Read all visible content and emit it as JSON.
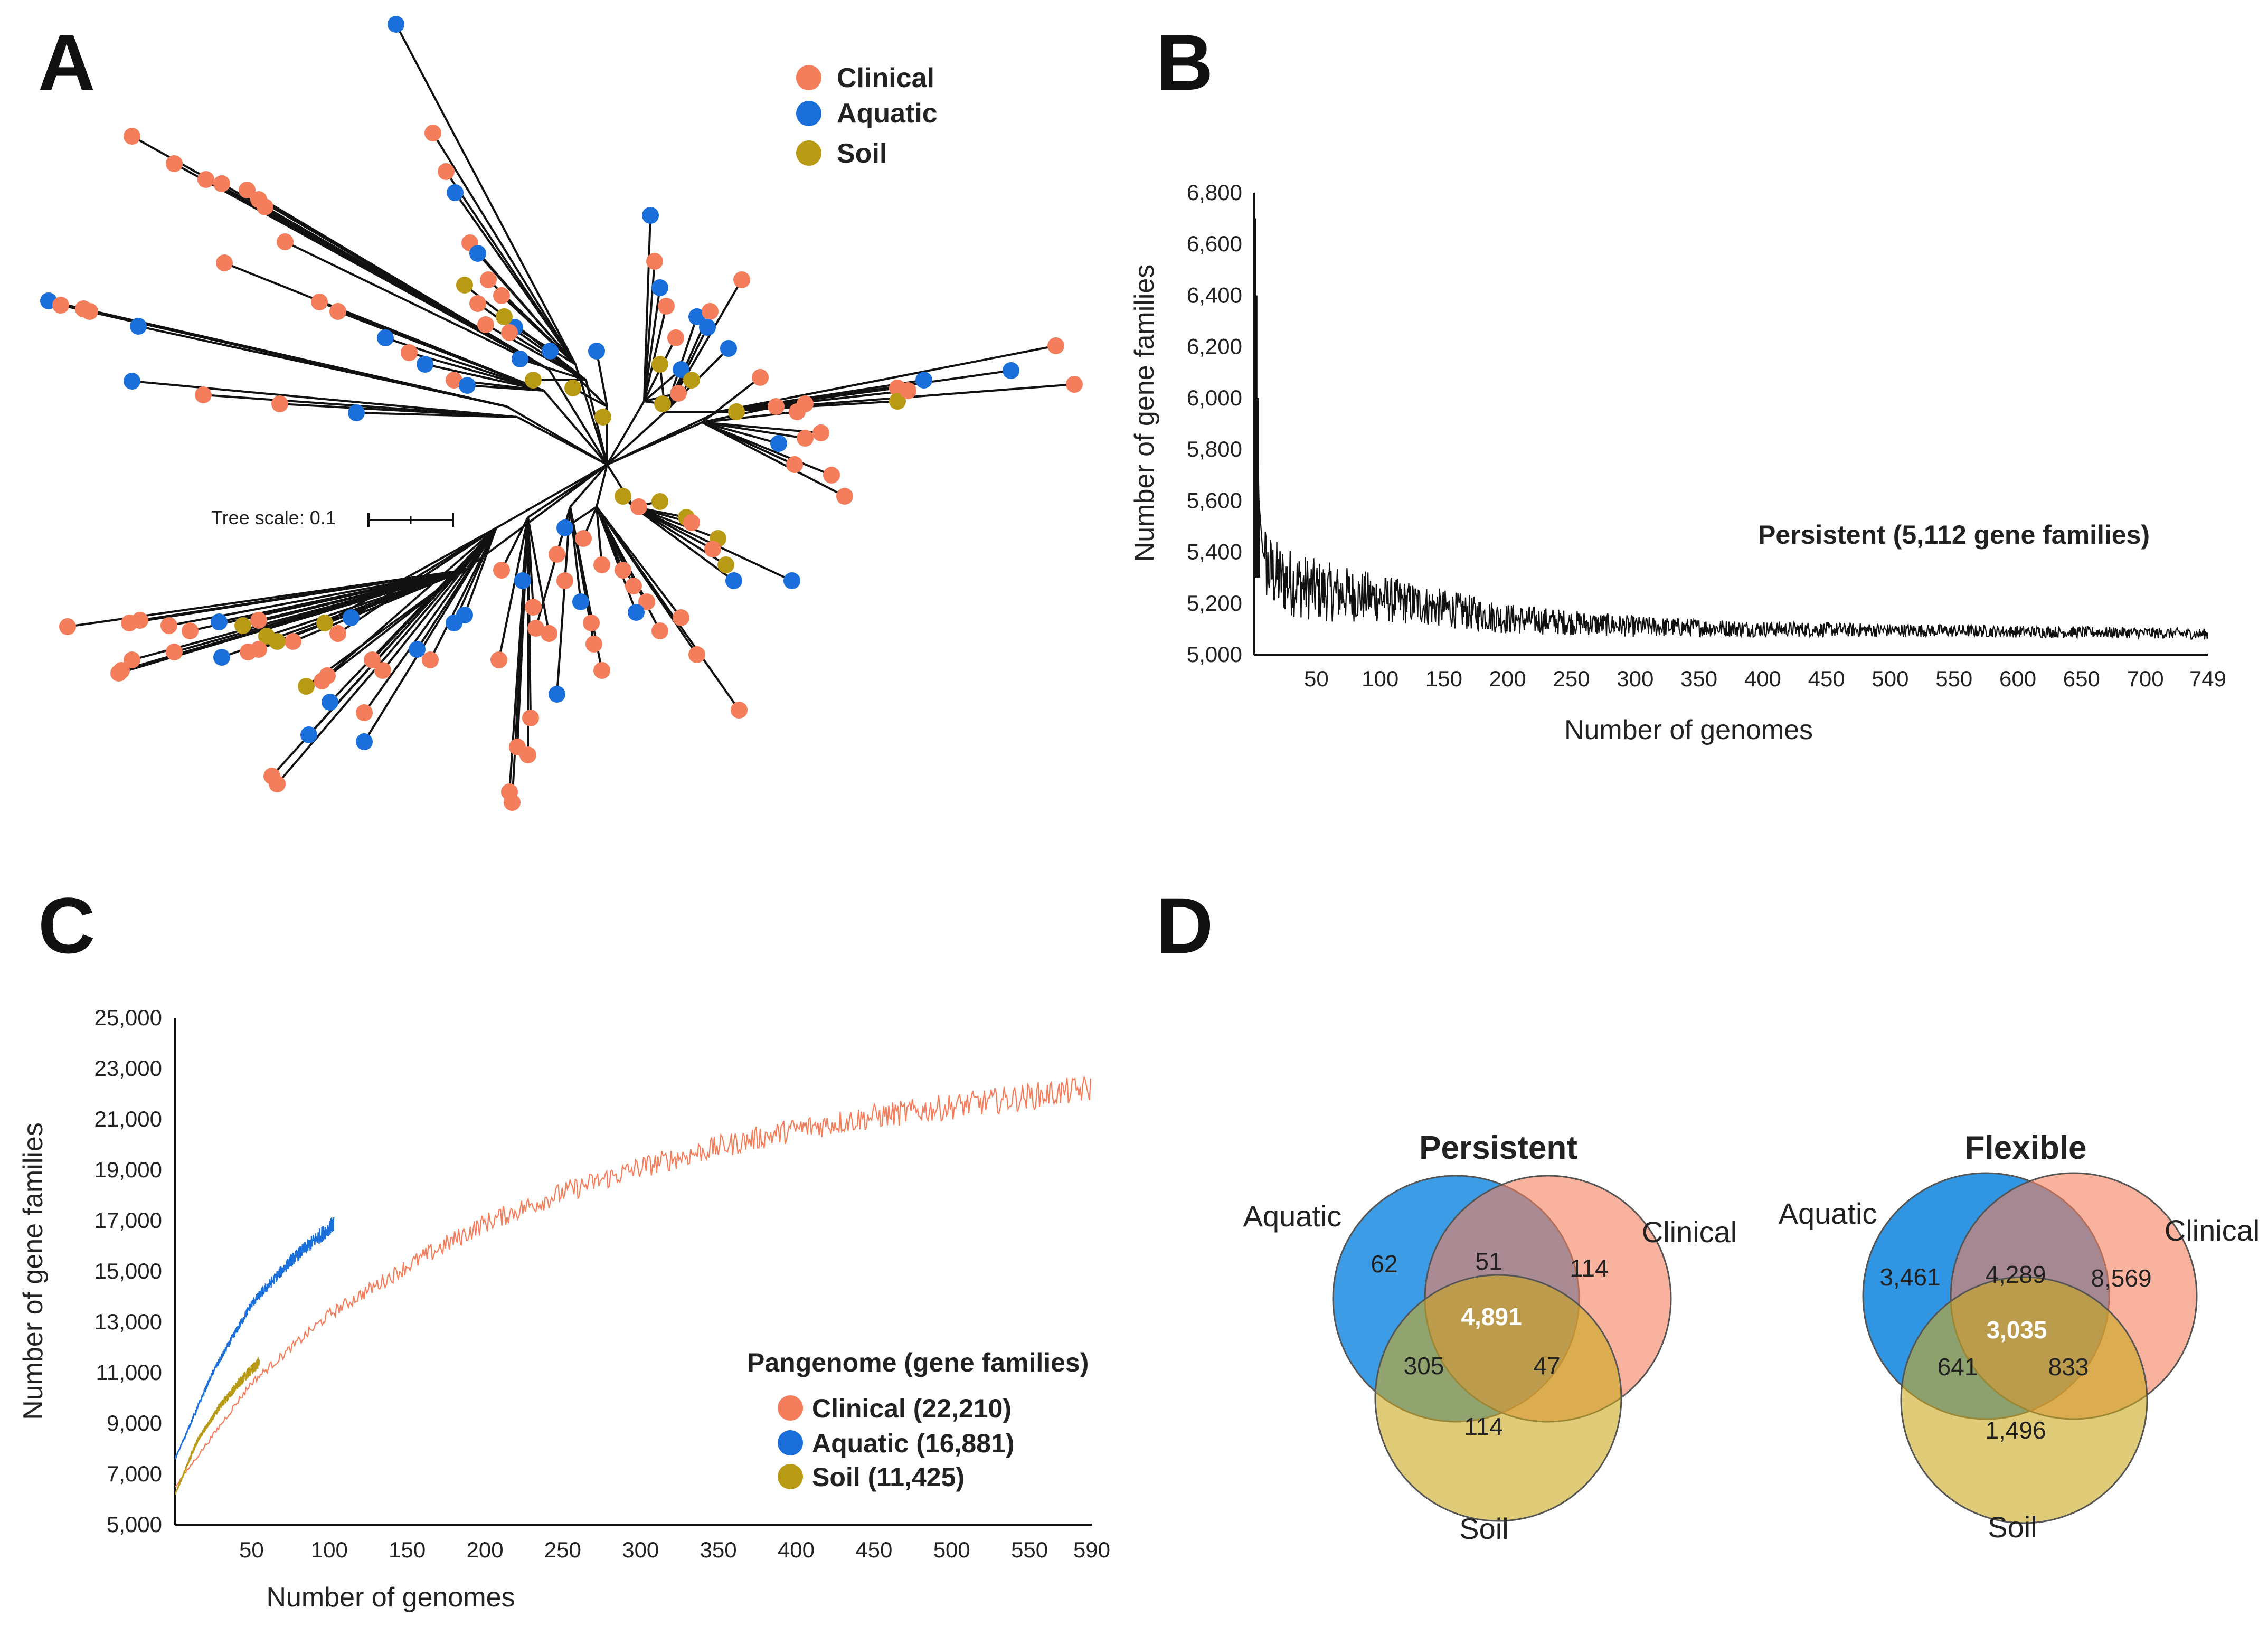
{
  "colors": {
    "clinical": "#f47e5c",
    "aquatic": "#1a6fdb",
    "soil": "#b89a14"
  },
  "panelA": {
    "letter": "A",
    "legend": [
      "Clinical",
      "Aquatic",
      "Soil"
    ],
    "scale_label": "Tree scale: 0.1"
  },
  "panelB": {
    "letter": "B",
    "annotation": "Persistent (5,112 gene families)"
  },
  "panelC": {
    "letter": "C",
    "legend_title": "Pangenome (gene families)",
    "legend": [
      "Clinical (22,210)",
      "Aquatic (16,881)",
      "Soil (11,425)"
    ]
  },
  "panelD": {
    "letter": "D",
    "persistent": {
      "title": "Persistent",
      "labels": {
        "aquatic": "Aquatic",
        "clinical": "Clinical",
        "soil": "Soil"
      },
      "values": {
        "aquatic_only": "62",
        "aquatic_clinical": "51",
        "clinical_only": "114",
        "all": "4,891",
        "aquatic_soil": "305",
        "clinical_soil": "47",
        "soil_only": "114"
      }
    },
    "flexible": {
      "title": "Flexible",
      "labels": {
        "aquatic": "Aquatic",
        "clinical": "Clinical",
        "soil": "Soil"
      },
      "values": {
        "aquatic_only": "3,461",
        "aquatic_clinical": "4,289",
        "clinical_only": "8,569",
        "all": "3,035",
        "aquatic_soil": "641",
        "clinical_soil": "833",
        "soil_only": "1,496"
      }
    }
  },
  "chart_data": [
    {
      "type": "line",
      "panel": "B",
      "title": "",
      "xlabel": "Number of genomes",
      "ylabel": "Number of gene families",
      "x_ticks": [
        "50",
        "100",
        "150",
        "200",
        "250",
        "300",
        "350",
        "400",
        "450",
        "500",
        "550",
        "600",
        "650",
        "700",
        "749"
      ],
      "y_ticks": [
        "5,000",
        "5,200",
        "5,400",
        "5,600",
        "5,800",
        "6,000",
        "6,200",
        "6,400",
        "6,600",
        "6,800"
      ],
      "xlim": [
        1,
        749
      ],
      "ylim": [
        5000,
        6800
      ],
      "series": [
        {
          "name": "Persistent",
          "x": [
            1,
            2,
            3,
            5,
            8,
            12,
            20,
            50,
            100,
            150,
            200,
            300,
            400,
            500,
            600,
            700,
            749
          ],
          "values": [
            6700,
            6500,
            6050,
            5600,
            5400,
            5330,
            5300,
            5250,
            5220,
            5180,
            5140,
            5110,
            5100,
            5095,
            5090,
            5085,
            5080
          ]
        }
      ]
    },
    {
      "type": "line",
      "panel": "C",
      "title": "",
      "xlabel": "Number of genomes",
      "ylabel": "Number of gene families",
      "x_ticks": [
        "50",
        "100",
        "150",
        "200",
        "250",
        "300",
        "350",
        "400",
        "450",
        "500",
        "550",
        "590"
      ],
      "y_ticks": [
        "5,000",
        "7,000",
        "9,000",
        "11,000",
        "13,000",
        "15,000",
        "17,000",
        "19,000",
        "21,000",
        "23,000",
        "25,000"
      ],
      "xlim": [
        1,
        590
      ],
      "ylim": [
        5000,
        25000
      ],
      "series": [
        {
          "name": "Clinical",
          "x": [
            1,
            50,
            100,
            150,
            200,
            250,
            300,
            350,
            400,
            450,
            500,
            550,
            590
          ],
          "values": [
            6500,
            10600,
            13300,
            15200,
            16900,
            18100,
            19100,
            19900,
            20600,
            21100,
            21500,
            21900,
            22210
          ]
        },
        {
          "name": "Aquatic",
          "x": [
            1,
            25,
            50,
            75,
            103
          ],
          "values": [
            7600,
            11000,
            13700,
            15400,
            16881
          ]
        },
        {
          "name": "Soil",
          "x": [
            1,
            15,
            30,
            45,
            55
          ],
          "values": [
            6200,
            8300,
            9700,
            10800,
            11425
          ]
        }
      ]
    }
  ]
}
